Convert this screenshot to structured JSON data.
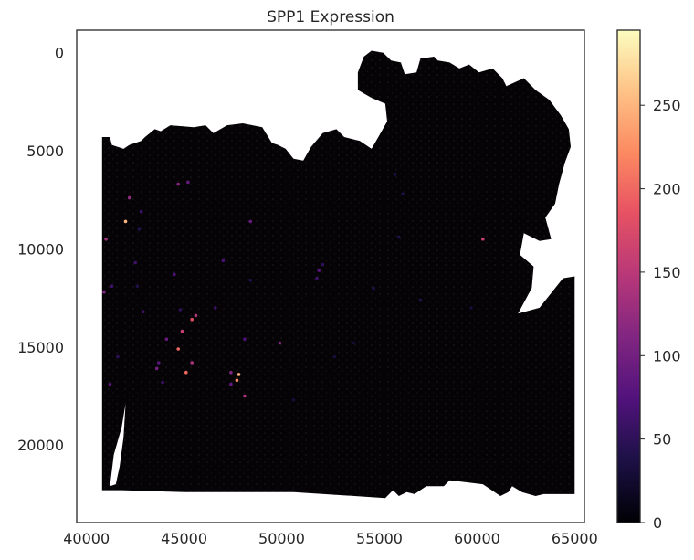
{
  "chart_data": {
    "type": "scatter",
    "title": "SPP1 Expression",
    "xlabel": "",
    "ylabel": "",
    "xlim": [
      39500,
      65500
    ],
    "ylim": [
      23950,
      -1150
    ],
    "y_inverted": true,
    "xticks": [
      40000,
      45000,
      50000,
      55000,
      60000,
      65000
    ],
    "yticks": [
      0,
      5000,
      10000,
      15000,
      20000
    ],
    "grid": false,
    "colormap": "magma",
    "colorbar": {
      "range": [
        0,
        295
      ],
      "ticks": [
        0,
        50,
        100,
        150,
        200,
        250
      ]
    },
    "background_value": 0,
    "tissue_outline": [
      [
        40800,
        4300
      ],
      [
        41200,
        4300
      ],
      [
        41300,
        4700
      ],
      [
        41900,
        4900
      ],
      [
        42200,
        4700
      ],
      [
        42800,
        4500
      ],
      [
        43000,
        4300
      ],
      [
        43500,
        3900
      ],
      [
        43800,
        4000
      ],
      [
        44300,
        3700
      ],
      [
        45500,
        3800
      ],
      [
        46100,
        3700
      ],
      [
        46500,
        4100
      ],
      [
        47200,
        3700
      ],
      [
        48000,
        3600
      ],
      [
        49000,
        3800
      ],
      [
        49500,
        4600
      ],
      [
        49800,
        4700
      ],
      [
        50200,
        4900
      ],
      [
        50600,
        5400
      ],
      [
        51100,
        5500
      ],
      [
        51500,
        4800
      ],
      [
        52100,
        4100
      ],
      [
        52800,
        3900
      ],
      [
        53200,
        4300
      ],
      [
        54000,
        4500
      ],
      [
        54600,
        4900
      ],
      [
        55000,
        4200
      ],
      [
        55400,
        3500
      ],
      [
        55300,
        2600
      ],
      [
        54600,
        2300
      ],
      [
        53900,
        1900
      ],
      [
        53900,
        1000
      ],
      [
        54200,
        200
      ],
      [
        54600,
        -100
      ],
      [
        55200,
        0
      ],
      [
        55600,
        400
      ],
      [
        56100,
        500
      ],
      [
        56300,
        1100
      ],
      [
        56900,
        1000
      ],
      [
        57100,
        300
      ],
      [
        57800,
        200
      ],
      [
        58000,
        400
      ],
      [
        58600,
        500
      ],
      [
        59100,
        800
      ],
      [
        59600,
        600
      ],
      [
        60100,
        1000
      ],
      [
        60800,
        800
      ],
      [
        61300,
        1300
      ],
      [
        61500,
        1700
      ],
      [
        62400,
        1300
      ],
      [
        63000,
        1900
      ],
      [
        63700,
        2400
      ],
      [
        64300,
        3200
      ],
      [
        64700,
        3900
      ],
      [
        64800,
        4800
      ],
      [
        64500,
        5600
      ],
      [
        64200,
        6700
      ],
      [
        64000,
        7700
      ],
      [
        63500,
        8400
      ],
      [
        63800,
        9500
      ],
      [
        63200,
        9600
      ],
      [
        62400,
        9200
      ],
      [
        62200,
        10300
      ],
      [
        62900,
        10900
      ],
      [
        62800,
        12000
      ],
      [
        62100,
        13300
      ],
      [
        63200,
        13000
      ],
      [
        64400,
        11500
      ],
      [
        65000,
        11400
      ],
      [
        65000,
        22500
      ],
      [
        63400,
        22500
      ],
      [
        63000,
        22600
      ],
      [
        62300,
        22400
      ],
      [
        61800,
        22100
      ],
      [
        61600,
        22400
      ],
      [
        61200,
        22600
      ],
      [
        60900,
        22400
      ],
      [
        60600,
        22200
      ],
      [
        60300,
        22000
      ],
      [
        58600,
        21800
      ],
      [
        58300,
        22100
      ],
      [
        57400,
        22100
      ],
      [
        56800,
        22500
      ],
      [
        56400,
        22400
      ],
      [
        56000,
        22600
      ],
      [
        55700,
        22300
      ],
      [
        55300,
        22700
      ],
      [
        50600,
        22400
      ],
      [
        45000,
        22400
      ],
      [
        41800,
        22300
      ],
      [
        41200,
        22300
      ],
      [
        40800,
        22300
      ],
      [
        40800,
        19000
      ],
      [
        40800,
        4300
      ]
    ],
    "tissue_holes": [
      [
        [
          41200,
          22100
        ],
        [
          41400,
          20500
        ],
        [
          41800,
          19100
        ],
        [
          42000,
          17900
        ],
        [
          41900,
          19600
        ],
        [
          41700,
          21100
        ],
        [
          41500,
          22000
        ]
      ]
    ],
    "series": [
      {
        "x": [
          42200,
          42000,
          42800,
          41000,
          44700,
          45200,
          47000,
          48400,
          42600,
          42900,
          45600,
          45400,
          44900,
          44100,
          44700,
          43700,
          43600,
          43900,
          45400,
          46600,
          48100,
          49900,
          47800,
          47700,
          48100,
          47400,
          47400,
          45100,
          41300,
          41600,
          51900,
          51800,
          52100,
          48400,
          60300,
          59700,
          56000,
          56200,
          55800,
          57100,
          50600,
          52700,
          54700,
          53700,
          44500,
          44800,
          42700,
          42500,
          41200,
          40900
        ],
        "y": [
          7400,
          8600,
          8100,
          9500,
          6700,
          6600,
          10600,
          8600,
          11900,
          13200,
          13400,
          13600,
          14200,
          14600,
          15100,
          15800,
          16100,
          16800,
          15800,
          13000,
          14600,
          14800,
          16400,
          16700,
          17500,
          16300,
          16900,
          16300,
          11900,
          15500,
          11100,
          11500,
          10800,
          11600,
          9500,
          13000,
          9400,
          7200,
          6200,
          12600,
          17700,
          15500,
          12000,
          14800,
          11300,
          13100,
          9000,
          10700,
          16900,
          12200
        ],
        "values": [
          120,
          250,
          60,
          130,
          110,
          90,
          70,
          90,
          40,
          60,
          150,
          180,
          160,
          90,
          200,
          80,
          100,
          60,
          140,
          60,
          70,
          110,
          250,
          220,
          140,
          110,
          90,
          200,
          60,
          50,
          80,
          60,
          50,
          40,
          160,
          30,
          40,
          40,
          40,
          40,
          30,
          30,
          40,
          30,
          70,
          50,
          40,
          60,
          80,
          110
        ]
      }
    ]
  }
}
